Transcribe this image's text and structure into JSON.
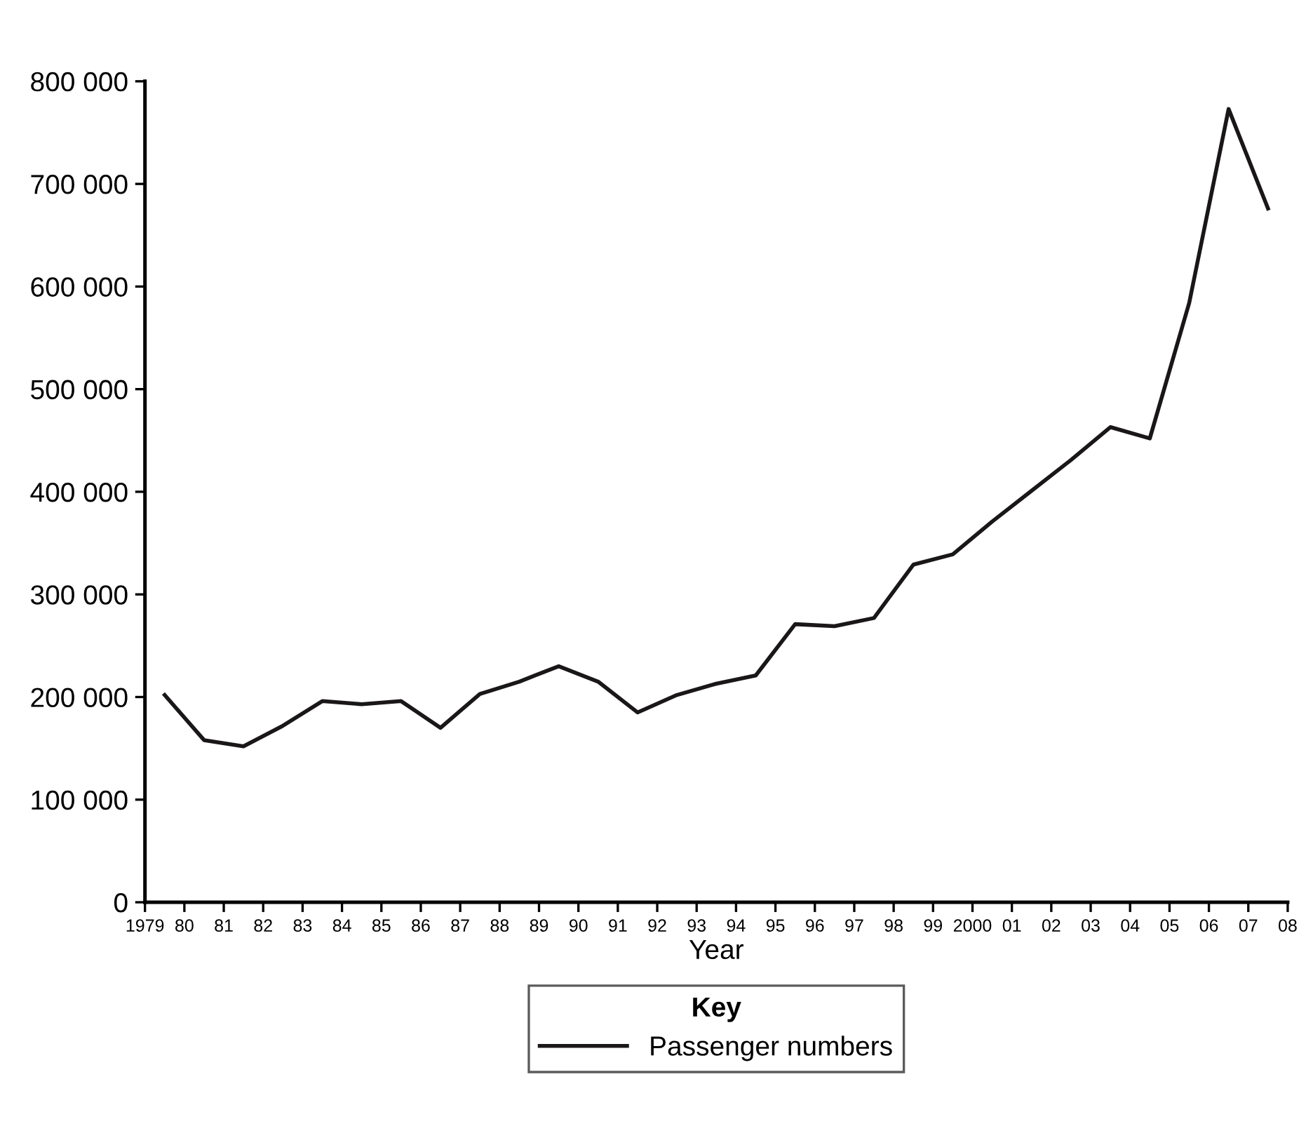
{
  "chart_data": {
    "type": "line",
    "xlabel": "Year",
    "legend_title": "Key",
    "legend": "bottom",
    "grid": false,
    "line_style": "solid",
    "marker": "none",
    "x": [
      1979.5,
      1980.5,
      1981.5,
      1982.5,
      1983.5,
      1984.5,
      1985.5,
      1986.5,
      1987.5,
      1988.5,
      1989.5,
      1990.5,
      1991.5,
      1992.5,
      1993.5,
      1994.5,
      1995.5,
      1996.5,
      1997.5,
      1998.5,
      1999.5,
      2000.5,
      2001.5,
      2002.5,
      2003.5,
      2004.5,
      2005.5,
      2006.5,
      2007.5
    ],
    "series": [
      {
        "name": "Passenger numbers",
        "color": "#1a1718",
        "values": [
          202000,
          158000,
          152000,
          172000,
          196000,
          193000,
          196000,
          170000,
          203000,
          215000,
          230000,
          215000,
          185000,
          202000,
          213000,
          221000,
          271000,
          269000,
          277000,
          329000,
          339000,
          371000,
          401000,
          431000,
          463000,
          452000,
          584000,
          773000,
          676000
        ]
      }
    ],
    "xlim": [
      1979,
      2008
    ],
    "xticks": [
      {
        "value": 1979,
        "label": "1979"
      },
      {
        "value": 1980,
        "label": "80"
      },
      {
        "value": 1981,
        "label": "81"
      },
      {
        "value": 1982,
        "label": "82"
      },
      {
        "value": 1983,
        "label": "83"
      },
      {
        "value": 1984,
        "label": "84"
      },
      {
        "value": 1985,
        "label": "85"
      },
      {
        "value": 1986,
        "label": "86"
      },
      {
        "value": 1987,
        "label": "87"
      },
      {
        "value": 1988,
        "label": "88"
      },
      {
        "value": 1989,
        "label": "89"
      },
      {
        "value": 1990,
        "label": "90"
      },
      {
        "value": 1991,
        "label": "91"
      },
      {
        "value": 1992,
        "label": "92"
      },
      {
        "value": 1993,
        "label": "93"
      },
      {
        "value": 1994,
        "label": "94"
      },
      {
        "value": 1995,
        "label": "95"
      },
      {
        "value": 1996,
        "label": "96"
      },
      {
        "value": 1997,
        "label": "97"
      },
      {
        "value": 1998,
        "label": "98"
      },
      {
        "value": 1999,
        "label": "99"
      },
      {
        "value": 2000,
        "label": "2000"
      },
      {
        "value": 2001,
        "label": "01"
      },
      {
        "value": 2002,
        "label": "02"
      },
      {
        "value": 2003,
        "label": "03"
      },
      {
        "value": 2004,
        "label": "04"
      },
      {
        "value": 2005,
        "label": "05"
      },
      {
        "value": 2006,
        "label": "06"
      },
      {
        "value": 2007,
        "label": "07"
      },
      {
        "value": 2008,
        "label": "08"
      }
    ],
    "ylim": [
      0,
      800000
    ],
    "yticks": [
      0,
      {
        "value": 100000,
        "label": "100 000"
      },
      {
        "value": 200000,
        "label": "200 000"
      },
      {
        "value": 300000,
        "label": "300 000"
      },
      {
        "value": 400000,
        "label": "400 000"
      },
      {
        "value": 500000,
        "label": "500 000"
      },
      {
        "value": 600000,
        "label": "600 000"
      },
      {
        "value": 700000,
        "label": "700 000"
      },
      {
        "value": 800000,
        "label": "800 000"
      }
    ]
  }
}
